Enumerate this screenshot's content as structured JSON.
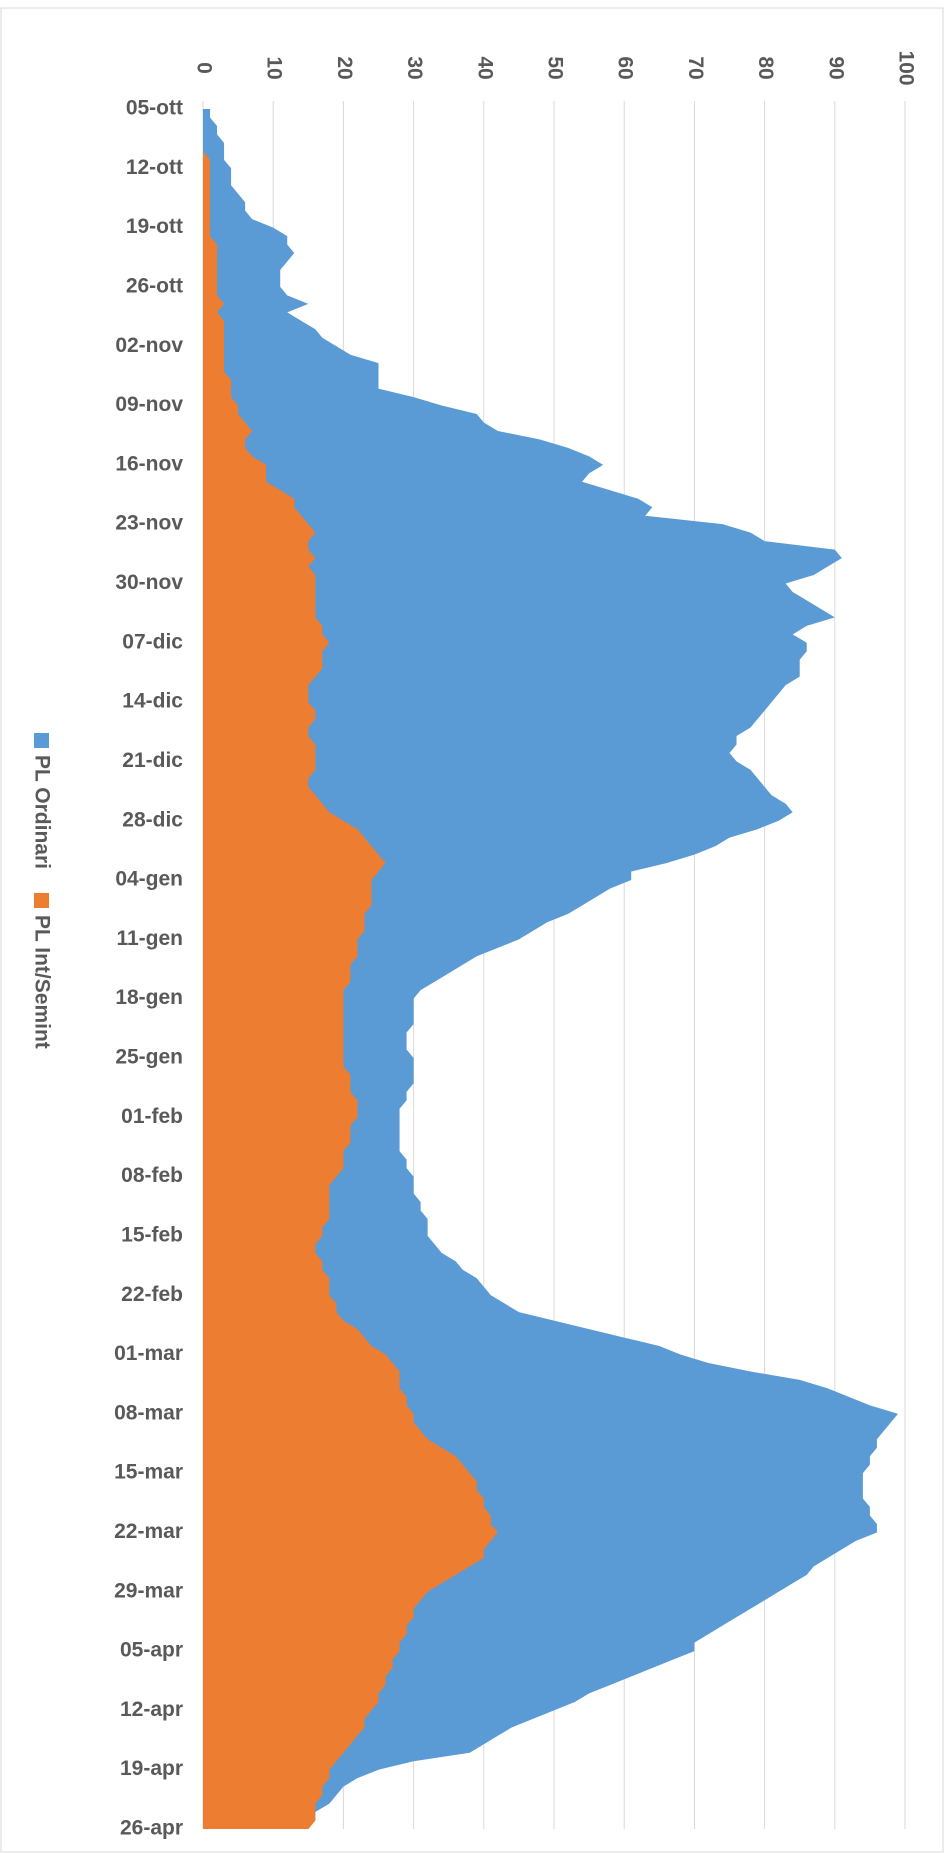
{
  "chart_data": {
    "type": "area",
    "categories": [
      "05-ott",
      null,
      null,
      null,
      null,
      null,
      null,
      "12-ott",
      null,
      null,
      null,
      null,
      null,
      null,
      "19-ott",
      null,
      null,
      null,
      null,
      null,
      null,
      "26-ott",
      null,
      null,
      null,
      null,
      null,
      null,
      "02-nov",
      null,
      null,
      null,
      null,
      null,
      null,
      "09-nov",
      null,
      null,
      null,
      null,
      null,
      null,
      "16-nov",
      null,
      null,
      null,
      null,
      null,
      null,
      "23-nov",
      null,
      null,
      null,
      null,
      null,
      null,
      "30-nov",
      null,
      null,
      null,
      null,
      null,
      null,
      "07-dic",
      null,
      null,
      null,
      null,
      null,
      null,
      "14-dic",
      null,
      null,
      null,
      null,
      null,
      null,
      "21-dic",
      null,
      null,
      null,
      null,
      null,
      null,
      "28-dic",
      null,
      null,
      null,
      null,
      null,
      null,
      "04-gen",
      null,
      null,
      null,
      null,
      null,
      null,
      "11-gen",
      null,
      null,
      null,
      null,
      null,
      null,
      "18-gen",
      null,
      null,
      null,
      null,
      null,
      null,
      "25-gen",
      null,
      null,
      null,
      null,
      null,
      null,
      "01-feb",
      null,
      null,
      null,
      null,
      null,
      null,
      "08-feb",
      null,
      null,
      null,
      null,
      null,
      null,
      "15-feb",
      null,
      null,
      null,
      null,
      null,
      null,
      "22-feb",
      null,
      null,
      null,
      null,
      null,
      null,
      "01-mar",
      null,
      null,
      null,
      null,
      null,
      null,
      "08-mar",
      null,
      null,
      null,
      null,
      null,
      null,
      "15-mar",
      null,
      null,
      null,
      null,
      null,
      null,
      "22-mar",
      null,
      null,
      null,
      null,
      null,
      null,
      "29-mar",
      null,
      null,
      null,
      null,
      null,
      null,
      "05-apr",
      null,
      null,
      null,
      null,
      null,
      null,
      "12-apr",
      null,
      null,
      null,
      null,
      null,
      null,
      "19-apr",
      null,
      null,
      null,
      null,
      null,
      null,
      "26-apr"
    ],
    "series": [
      {
        "name": "PL Ordinari",
        "color": "#5b9bd5",
        "values": [
          1,
          1,
          2,
          2,
          3,
          3,
          3,
          4,
          4,
          4,
          5,
          6,
          6,
          7,
          10,
          12,
          12,
          13,
          12,
          11,
          11,
          11,
          12,
          15,
          12,
          14,
          16,
          17,
          19,
          21,
          25,
          25,
          25,
          25,
          30,
          34,
          39,
          40,
          42,
          48,
          52,
          55,
          57,
          55,
          54,
          58,
          62,
          64,
          63,
          74,
          78,
          80,
          90,
          91,
          89,
          87,
          83,
          84,
          86,
          88,
          90,
          86,
          84,
          86,
          86,
          85,
          85,
          85,
          83,
          82,
          81,
          80,
          79,
          78,
          76,
          76,
          75,
          76,
          78,
          79,
          80,
          81,
          83,
          84,
          82,
          79,
          75,
          73,
          70,
          66,
          61,
          61,
          58,
          56,
          54,
          52,
          49,
          47,
          45,
          42,
          39,
          37,
          35,
          33,
          31,
          30,
          30,
          30,
          30,
          29,
          29,
          29,
          30,
          30,
          30,
          30,
          29,
          29,
          28,
          28,
          28,
          28,
          28,
          28,
          29,
          29,
          30,
          30,
          30,
          31,
          31,
          32,
          32,
          32,
          33,
          34,
          36,
          37,
          39,
          40,
          41,
          43,
          45,
          50,
          55,
          60,
          65,
          68,
          72,
          78,
          85,
          89,
          92,
          95,
          99,
          98,
          97,
          96,
          96,
          95,
          95,
          94,
          94,
          94,
          94,
          95,
          95,
          96,
          96,
          93,
          91,
          89,
          87,
          86,
          84,
          82,
          80,
          78,
          76,
          74,
          72,
          70,
          70,
          67,
          64,
          61,
          58,
          55,
          53,
          50,
          47,
          44,
          42,
          40,
          38,
          30,
          25,
          22,
          20,
          19,
          18,
          16,
          16,
          15
        ]
      },
      {
        "name": "PL Int/Semint",
        "color": "#ed7d31",
        "values": [
          0,
          0,
          0,
          0,
          0,
          0,
          1,
          1,
          1,
          1,
          1,
          1,
          1,
          1,
          1,
          1,
          2,
          2,
          2,
          2,
          2,
          2,
          2,
          3,
          2,
          3,
          3,
          3,
          3,
          3,
          3,
          3,
          4,
          4,
          4,
          5,
          5,
          6,
          7,
          6,
          6,
          7,
          9,
          9,
          9,
          11,
          13,
          13,
          14,
          15,
          16,
          15,
          15,
          16,
          15,
          16,
          16,
          16,
          16,
          16,
          16,
          17,
          17,
          18,
          17,
          17,
          17,
          16,
          15,
          15,
          15,
          16,
          16,
          15,
          15,
          16,
          16,
          16,
          16,
          15,
          15,
          16,
          17,
          18,
          20,
          22,
          23,
          24,
          25,
          26,
          25,
          24,
          24,
          24,
          24,
          23,
          23,
          23,
          22,
          22,
          22,
          21,
          21,
          21,
          20,
          20,
          20,
          20,
          20,
          20,
          20,
          20,
          20,
          20,
          21,
          21,
          21,
          22,
          22,
          22,
          21,
          21,
          21,
          20,
          20,
          20,
          19,
          18,
          18,
          18,
          18,
          18,
          17,
          17,
          16,
          16,
          17,
          17,
          18,
          18,
          18,
          19,
          19,
          20,
          22,
          23,
          24,
          26,
          27,
          28,
          28,
          28,
          29,
          29,
          30,
          30,
          31,
          32,
          34,
          36,
          37,
          38,
          39,
          39,
          40,
          40,
          41,
          41,
          42,
          41,
          40,
          40,
          38,
          36,
          34,
          32,
          31,
          30,
          30,
          29,
          29,
          28,
          28,
          27,
          27,
          26,
          26,
          25,
          25,
          24,
          23,
          23,
          22,
          21,
          20,
          19,
          18,
          18,
          17,
          17,
          16,
          16,
          16,
          15
        ]
      }
    ],
    "xlim": [
      0,
      100
    ],
    "xticks": [
      0,
      10,
      20,
      30,
      40,
      50,
      60,
      70,
      80,
      90,
      100
    ],
    "grid": true,
    "orientation": "horizontal",
    "legend": "left"
  }
}
